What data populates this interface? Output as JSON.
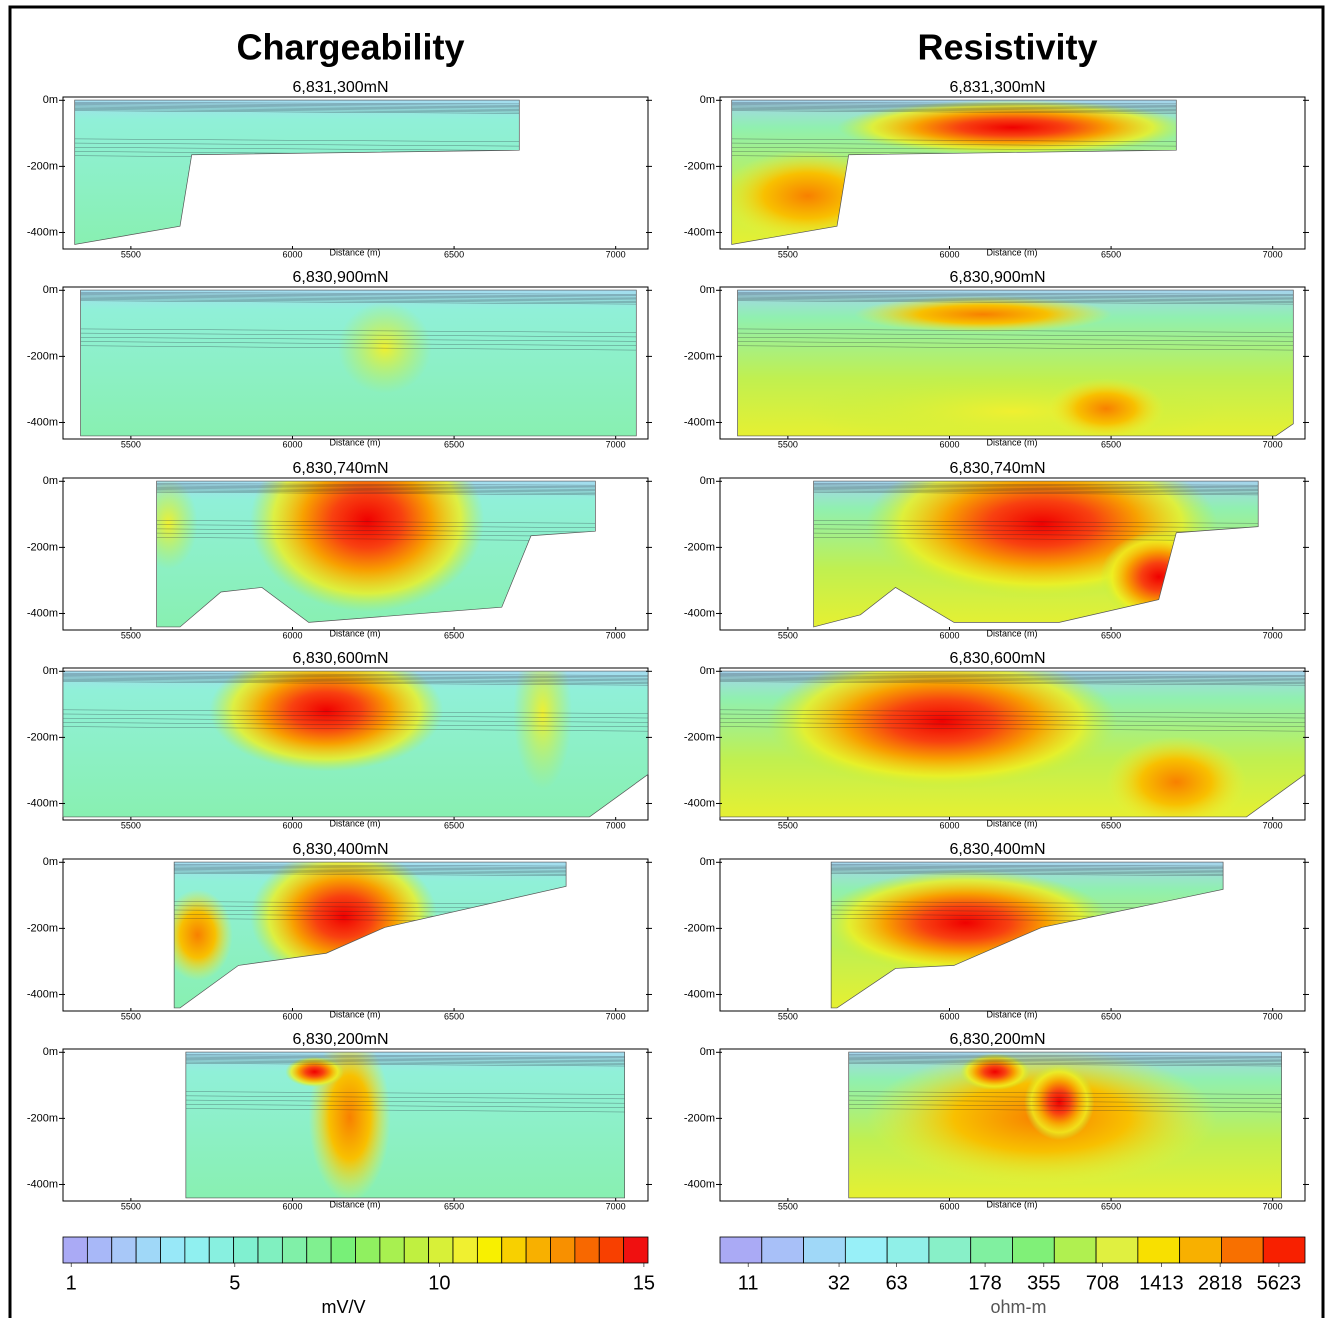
{
  "axes": {
    "xlabel": "Distance (m)",
    "xlim": [
      5290,
      7100
    ],
    "xticks": [
      5500,
      6000,
      6500,
      7000
    ],
    "ylim": [
      -450,
      10
    ],
    "yticks": [
      {
        "value": 0,
        "label": "0m"
      },
      {
        "value": -200,
        "label": "-200m"
      },
      {
        "value": -400,
        "label": "-400m"
      }
    ]
  },
  "columns": [
    {
      "title": "Chargeability",
      "sections": [
        "6,831,300mN",
        "6,830,900mN",
        "6,830,740mN",
        "6,830,600mN",
        "6,830,400mN",
        "6,830,200mN"
      ],
      "colorbar": {
        "unit": "mV/V",
        "log": false,
        "lim": [
          0.8,
          15.1
        ],
        "ticks": [
          1,
          5,
          10,
          15
        ],
        "colors": [
          "#aaaaf5",
          "#a8b8f8",
          "#a8c8f8",
          "#a0d8f8",
          "#98e8f8",
          "#90f0f0",
          "#88f0e0",
          "#80f0d0",
          "#80f0c0",
          "#80f0a8",
          "#80f090",
          "#78f078",
          "#90f060",
          "#a8f050",
          "#c0f040",
          "#d8f038",
          "#f0f030",
          "#f8f000",
          "#f8d000",
          "#f8b000",
          "#f89000",
          "#f86800",
          "#f84000",
          "#f01010"
        ]
      }
    },
    {
      "title": "Resistivity",
      "sections": [
        "6,831,300mN",
        "6,830,900mN",
        "6,830,740mN",
        "6,830,600mN",
        "6,830,400mN",
        "6,830,200mN"
      ],
      "colorbar": {
        "unit": "ohm-m",
        "log": true,
        "lim": [
          7.9,
          7640
        ],
        "ticks": [
          11,
          32,
          63,
          178,
          355,
          708,
          1413,
          2818,
          5623
        ],
        "colors": [
          "#aaaaf5",
          "#a8c0f8",
          "#a0d8f8",
          "#98f0f8",
          "#90f0e8",
          "#88f0c8",
          "#80f0a0",
          "#80f078",
          "#b0f050",
          "#e0f040",
          "#f8e000",
          "#f8b000",
          "#f87000",
          "#f82000"
        ]
      }
    }
  ]
}
